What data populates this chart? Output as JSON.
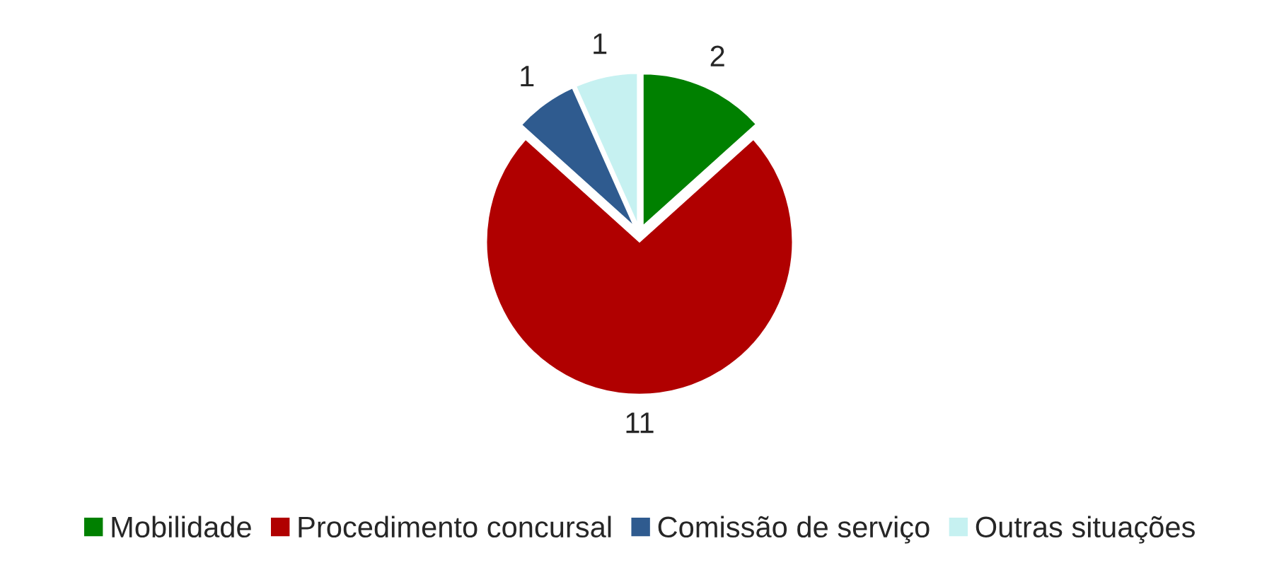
{
  "chart_data": {
    "type": "pie",
    "categories": [
      "Mobilidade",
      "Procedimento concursal",
      "Comissão de serviço",
      "Outras situações"
    ],
    "values": [
      2,
      11,
      1,
      1
    ],
    "colors": [
      "#008000",
      "#b00000",
      "#2f5b8f",
      "#c6f1f1"
    ],
    "data_labels": true,
    "legend": "bottom"
  }
}
